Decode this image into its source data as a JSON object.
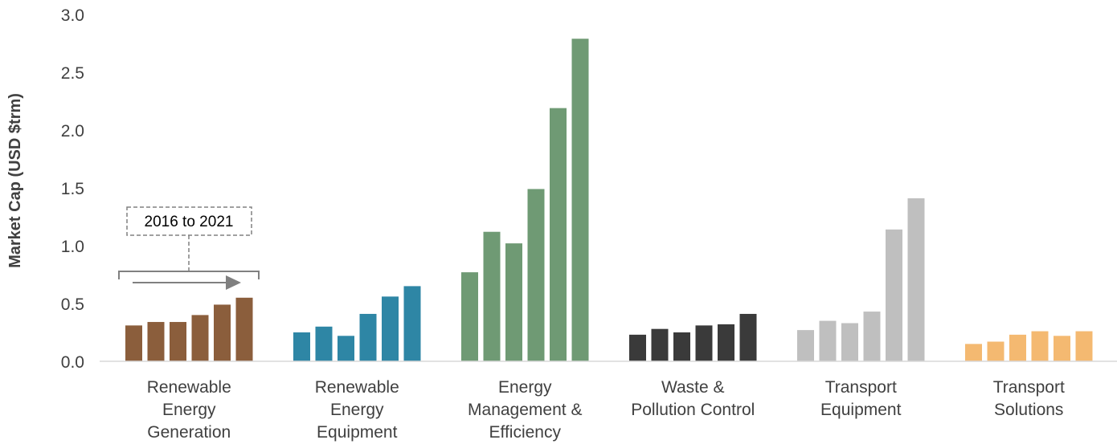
{
  "chart_data": {
    "type": "bar",
    "ylabel": "Market Cap (USD $trm)",
    "ylim": [
      0,
      3.0
    ],
    "yticks": [
      "0.0",
      "0.5",
      "1.0",
      "1.5",
      "2.0",
      "2.5",
      "3.0"
    ],
    "grid": false,
    "legend": "none",
    "annotation": "2016 to 2021",
    "categories": [
      {
        "label": [
          "Renewable",
          "Energy",
          "Generation"
        ],
        "color": "#8b5e3c",
        "values": [
          0.31,
          0.34,
          0.34,
          0.4,
          0.49,
          0.55
        ]
      },
      {
        "label": [
          "Renewable",
          "Energy",
          "Equipment"
        ],
        "color": "#2e86a5",
        "values": [
          0.25,
          0.3,
          0.22,
          0.41,
          0.56,
          0.65
        ]
      },
      {
        "label": [
          "Energy",
          "Management &",
          "Efficiency"
        ],
        "color": "#6f9a74",
        "values": [
          0.77,
          1.12,
          1.02,
          1.49,
          2.19,
          2.79
        ]
      },
      {
        "label": [
          "Waste &",
          "Pollution Control"
        ],
        "color": "#3a3a3a",
        "values": [
          0.23,
          0.28,
          0.25,
          0.31,
          0.32,
          0.41
        ]
      },
      {
        "label": [
          "Transport",
          "Equipment"
        ],
        "color": "#bfbfbf",
        "values": [
          0.27,
          0.35,
          0.33,
          0.43,
          1.14,
          1.41
        ]
      },
      {
        "label": [
          "Transport",
          "Solutions"
        ],
        "color": "#f4b971",
        "values": [
          0.15,
          0.17,
          0.23,
          0.26,
          0.22,
          0.26
        ]
      }
    ]
  }
}
